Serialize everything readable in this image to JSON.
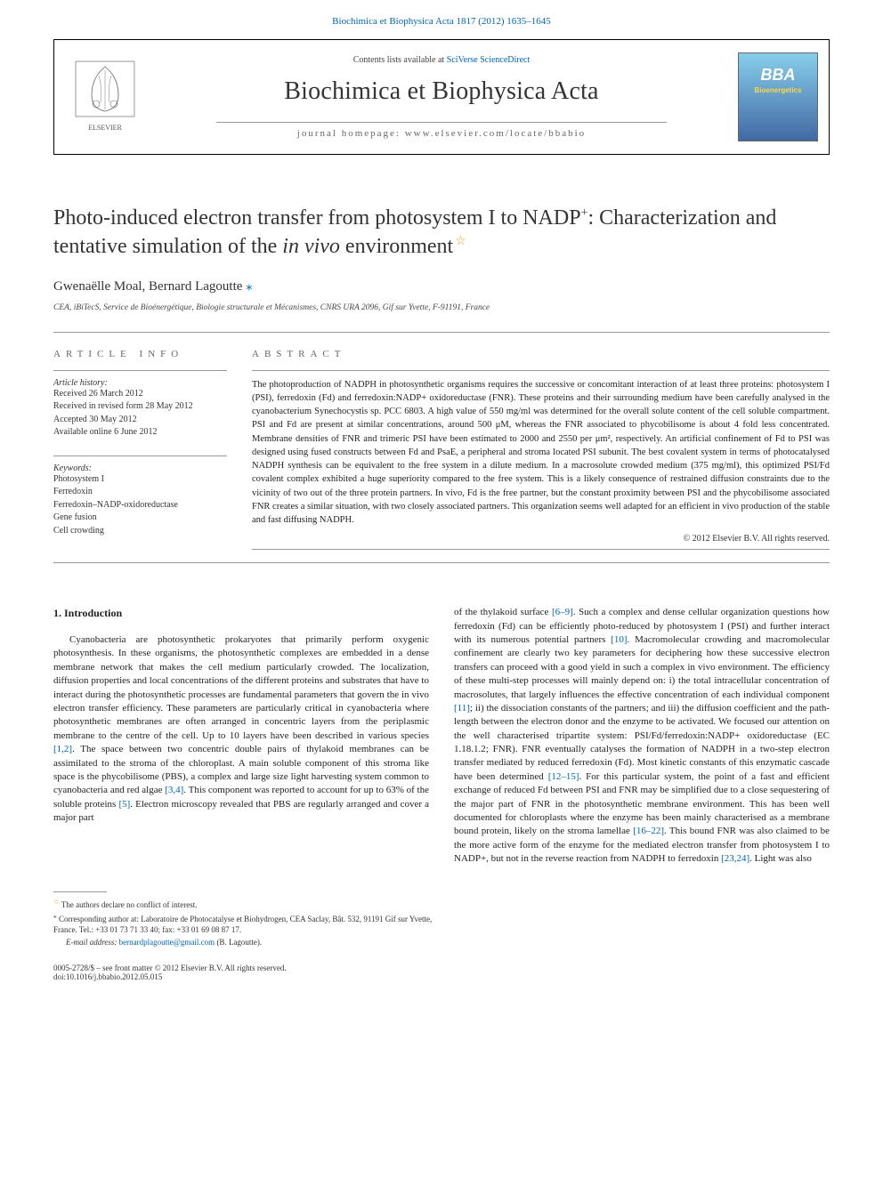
{
  "top_citation": "Biochimica et Biophysica Acta 1817 (2012) 1635–1645",
  "header": {
    "contents_prefix": "Contents lists available at ",
    "contents_link": "SciVerse ScienceDirect",
    "journal_name": "Biochimica et Biophysica Acta",
    "homepage_label": "journal homepage: www.elsevier.com/locate/bbabio",
    "bba_logo_text": "BBA",
    "bba_logo_subtitle": "Bioenergetics"
  },
  "title_main": "Photo-induced electron transfer from photosystem I to NADP",
  "title_sup": "+",
  "title_after": ": Characterization and tentative simulation of the ",
  "title_italic": "in vivo",
  "title_end": " environment",
  "title_star": "☆",
  "authors_a": "Gwenaëlle Moal",
  "authors_b": "Bernard Lagoutte ",
  "author_mark": "⁎",
  "affiliation": "CEA, iBiTecS, Service de Bioénergétique, Biologie structurale et Mécanismes, CNRS URA 2096, Gif sur Yvette, F-91191, France",
  "info": {
    "heading": "ARTICLE INFO",
    "history_label": "Article history:",
    "history": "Received 26 March 2012\nReceived in revised form 28 May 2012\nAccepted 30 May 2012\nAvailable online 6 June 2012",
    "keywords_label": "Keywords:",
    "keywords": "Photosystem I\nFerredoxin\nFerredoxin–NADP-oxidoreductase\nGene fusion\nCell crowding"
  },
  "abstract": {
    "heading": "ABSTRACT",
    "text": "The photoproduction of NADPH in photosynthetic organisms requires the successive or concomitant interaction of at least three proteins: photosystem I (PSI), ferredoxin (Fd) and ferredoxin:NADP+ oxidoreductase (FNR). These proteins and their surrounding medium have been carefully analysed in the cyanobacterium Synechocystis sp. PCC 6803. A high value of 550 mg/ml was determined for the overall solute content of the cell soluble compartment. PSI and Fd are present at similar concentrations, around 500 μM, whereas the FNR associated to phycobilisome is about 4 fold less concentrated. Membrane densities of FNR and trimeric PSI have been estimated to 2000 and 2550 per μm², respectively. An artificial confinement of Fd to PSI was designed using fused constructs between Fd and PsaE, a peripheral and stroma located PSI subunit. The best covalent system in terms of photocatalysed NADPH synthesis can be equivalent to the free system in a dilute medium. In a macrosolute crowded medium (375 mg/ml), this optimized PSI/Fd covalent complex exhibited a huge superiority compared to the free system. This is a likely consequence of restrained diffusion constraints due to the vicinity of two out of the three protein partners. In vivo, Fd is the free partner, but the constant proximity between PSI and the phycobilisome associated FNR creates a similar situation, with two closely associated partners. This organization seems well adapted for an efficient in vivo production of the stable and fast diffusing NADPH.",
    "copyright": "© 2012 Elsevier B.V. All rights reserved."
  },
  "section1": {
    "heading": "1. Introduction",
    "col1_para": "Cyanobacteria are photosynthetic prokaryotes that primarily perform oxygenic photosynthesis. In these organisms, the photosynthetic complexes are embedded in a dense membrane network that makes the cell medium particularly crowded. The localization, diffusion properties and local concentrations of the different proteins and substrates that have to interact during the photosynthetic processes are fundamental parameters that govern the in vivo electron transfer efficiency. These parameters are particularly critical in cyanobacteria where photosynthetic membranes are often arranged in concentric layers from the periplasmic membrane to the centre of the cell. Up to 10 layers have been described in various species ",
    "col1_ref1": "[1,2]",
    "col1_para2": ". The space between two concentric double pairs of thylakoid membranes can be assimilated to the stroma of the chloroplast. A main soluble component of this stroma like space is the phycobilisome (PBS), a complex and large size light harvesting system common to cyanobacteria and red algae ",
    "col1_ref2": "[3,4]",
    "col1_para3": ". This component was reported to account for up to 63% of the soluble proteins ",
    "col1_ref3": "[5]",
    "col1_para4": ". Electron microscopy revealed that PBS are regularly arranged and cover a major part",
    "col2_start": "of the thylakoid surface ",
    "col2_ref1": "[6–9]",
    "col2_para1": ". Such a complex and dense cellular organization questions how ferredoxin (Fd) can be efficiently photo-reduced by photosystem I (PSI) and further interact with its numerous potential partners ",
    "col2_ref2": "[10]",
    "col2_para2": ". Macromolecular crowding and macromolecular confinement are clearly two key parameters for deciphering how these successive electron transfers can proceed with a good yield in such a complex in vivo environment. The efficiency of these multi-step processes will mainly depend on: i) the total intracellular concentration of macrosolutes, that largely influences the effective concentration of each individual component ",
    "col2_ref3": "[11]",
    "col2_para3": "; ii) the dissociation constants of the partners; and iii) the diffusion coefficient and the path-length between the electron donor and the enzyme to be activated. We focused our attention on the well characterised tripartite system: PSI/Fd/ferredoxin:NADP+ oxidoreductase (EC 1.18.1.2; FNR). FNR eventually catalyses the formation of NADPH in a two-step electron transfer mediated by reduced ferredoxin (Fd). Most kinetic constants of this enzymatic cascade have been determined ",
    "col2_ref4": "[12–15]",
    "col2_para4": ". For this particular system, the point of a fast and efficient exchange of reduced Fd between PSI and FNR may be simplified due to a close sequestering of the major part of FNR in the photosynthetic membrane environment. This has been well documented for chloroplasts where the enzyme has been mainly characterised as a membrane bound protein, likely on the stroma lamellae ",
    "col2_ref5": "[16–22]",
    "col2_para5": ". This bound FNR was also claimed to be the more active form of the enzyme for the mediated electron transfer from photosystem I to NADP+, but not in the reverse reaction from NADPH to ferredoxin ",
    "col2_ref6": "[23,24]",
    "col2_para6": ". Light was also"
  },
  "footnotes": {
    "star_text": "The authors declare no conflict of interest.",
    "corr_text": "Corresponding author at: Laboratoire de Photocatalyse et Biohydrogen, CEA Saclay, Bât. 532, 91191 Gif sur Yvette, France. Tel.: +33 01 73 71 33 40; fax: +33 01 69 08 87 17.",
    "email_label": "E-mail address: ",
    "email": "bernardplagoutte@gmail.com",
    "email_after": " (B. Lagoutte)."
  },
  "bottom": {
    "issn": "0005-2728/$ – see front matter © 2012 Elsevier B.V. All rights reserved.",
    "doi": "doi:10.1016/j.bbabio.2012.05.015"
  },
  "colors": {
    "link": "#0066b3",
    "star": "#d4a017",
    "text": "#222222",
    "muted": "#666666"
  }
}
